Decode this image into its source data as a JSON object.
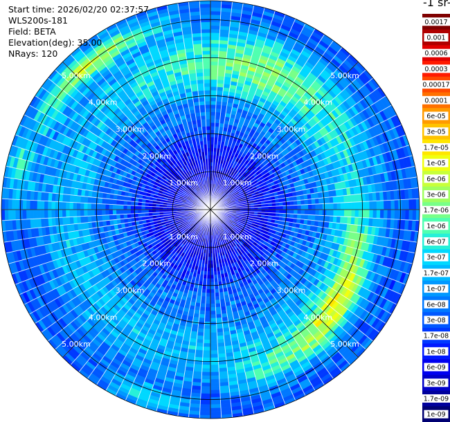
{
  "info": {
    "start_time": "Start time: 2026/02/20 02:37:57",
    "station": "WLS200s-181",
    "field": "Field: BETA",
    "elevation": "Elevation(deg): 35.00",
    "nrays": "NRays: 120"
  },
  "colorbar": {
    "title": "-1 sr-",
    "levels": [
      "0.0017",
      "0.001",
      "0.0006",
      "0.0003",
      "0.00017",
      "0.0001",
      "6e-05",
      "3e-05",
      "1.7e-05",
      "1e-05",
      "6e-06",
      "3e-06",
      "1.7e-06",
      "1e-06",
      "6e-07",
      "3e-07",
      "1.7e-07",
      "1e-07",
      "6e-08",
      "3e-08",
      "1.7e-08",
      "1e-08",
      "6e-09",
      "3e-09",
      "1.7e-09",
      "1e-09"
    ],
    "colors": [
      "#7f0000",
      "#b00000",
      "#e00000",
      "#ff1a00",
      "#ff4800",
      "#ff7000",
      "#ff9a00",
      "#ffc200",
      "#ffe600",
      "#f0ff10",
      "#c8ff3a",
      "#a0ff60",
      "#78ff88",
      "#50ffb0",
      "#28f0d8",
      "#00d8ff",
      "#00b8ff",
      "#0098ff",
      "#0078ff",
      "#0058ff",
      "#0038ff",
      "#0018ff",
      "#0000f0",
      "#0000c8",
      "#00009c",
      "#000072"
    ]
  },
  "chart_data": {
    "type": "heatmap",
    "projection": "polar (PPI scan)",
    "nrays": 120,
    "range_ring_labels": [
      "1.00km",
      "2.00km",
      "3.00km",
      "4.00km",
      "5.00km"
    ],
    "range_rings_km": [
      1,
      2,
      3,
      4,
      5
    ],
    "max_range_km": 5.5,
    "colorbar_title": "-1 sr-",
    "value_range": [
      1e-09,
      0.0017
    ],
    "scale": "log",
    "pattern": "low backscatter (1e-09 to 1e-08) near center rising to ~1e-07 to 1e-06 beyond 2 km; ring of 1e-06 to 1e-05 between 3 and 5 km, strongest toward the north, northwest and southeast"
  }
}
